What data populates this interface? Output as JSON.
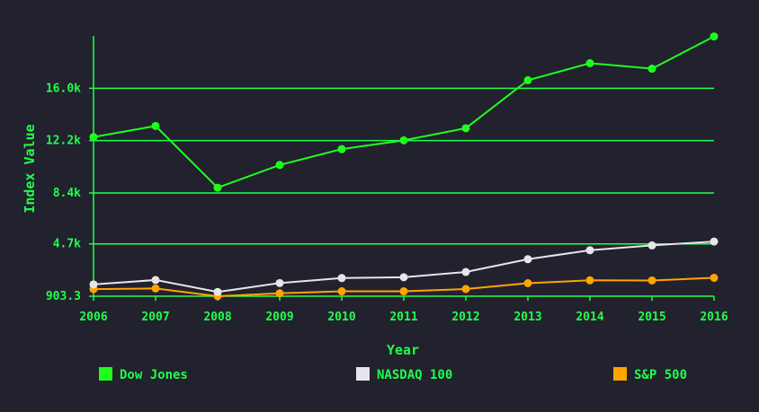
{
  "chart_data": {
    "type": "line",
    "xlabel": "Year",
    "ylabel": "Index Value",
    "categories": [
      "2006",
      "2007",
      "2008",
      "2009",
      "2010",
      "2011",
      "2012",
      "2013",
      "2014",
      "2015",
      "2016"
    ],
    "yticks": [
      903.3,
      4700,
      8400,
      12200,
      16000
    ],
    "ytick_labels": [
      "903.3",
      "4.7k",
      "8.4k",
      "12.2k",
      "16.0k"
    ],
    "ylim": [
      903.3,
      19800
    ],
    "grid": "horizontal",
    "legend_position": "bottom",
    "series": [
      {
        "name": "Dow Jones",
        "color": "#1fff1f",
        "values": [
          12460,
          13260,
          8780,
          10430,
          11580,
          12220,
          13100,
          16580,
          17820,
          17420,
          19760
        ]
      },
      {
        "name": "NASDAQ 100",
        "color": "#e6e6ea",
        "values": [
          1760,
          2080,
          1210,
          1860,
          2220,
          2280,
          2660,
          3590,
          4240,
          4590,
          4870
        ]
      },
      {
        "name": "S&P 500",
        "color": "#ffa500",
        "values": [
          1418,
          1468,
          903,
          1115,
          1258,
          1258,
          1426,
          1848,
          2059,
          2044,
          2239
        ]
      }
    ]
  }
}
